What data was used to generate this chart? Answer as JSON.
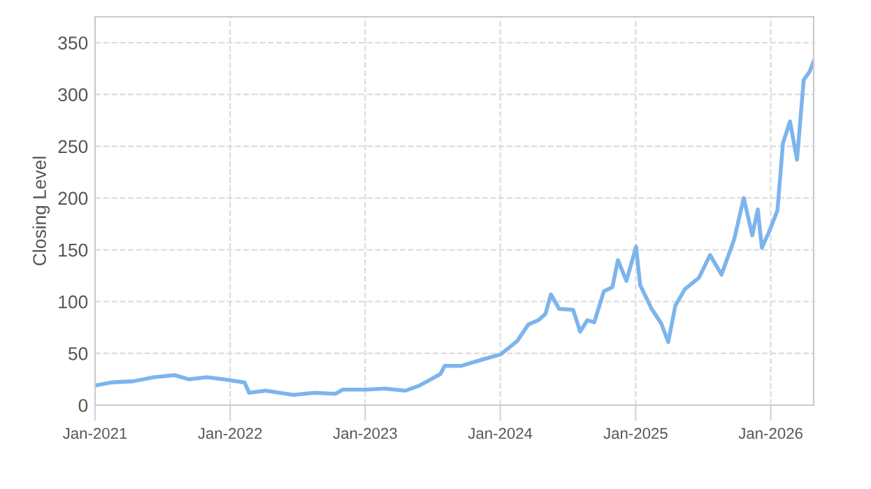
{
  "chart_data": {
    "type": "line",
    "ylabel": "Closing Level",
    "x": [
      "2021-01-01",
      "2021-02-15",
      "2021-04-13",
      "2021-06-09",
      "2021-08-04",
      "2021-09-11",
      "2021-10-30",
      "2021-12-15",
      "2022-02-09",
      "2022-02-21",
      "2022-04-07",
      "2022-06-21",
      "2022-08-17",
      "2022-10-13",
      "2022-11-01",
      "2023-01-04",
      "2023-02-22",
      "2023-04-20",
      "2023-05-28",
      "2023-07-23",
      "2023-08-04",
      "2023-09-18",
      "2023-11-13",
      "2024-01-02",
      "2024-02-16",
      "2024-03-17",
      "2024-04-13",
      "2024-05-02",
      "2024-05-17",
      "2024-06-08",
      "2024-07-16",
      "2024-08-04",
      "2024-08-23",
      "2024-09-11",
      "2024-10-07",
      "2024-10-30",
      "2024-11-14",
      "2024-12-07",
      "2025-01-02",
      "2025-01-13",
      "2025-02-13",
      "2025-03-11",
      "2025-03-30",
      "2025-04-18",
      "2025-05-14",
      "2025-06-21",
      "2025-07-21",
      "2025-08-21",
      "2025-09-24",
      "2025-10-20",
      "2025-11-12",
      "2025-11-27",
      "2025-12-08",
      "2025-12-27",
      "2026-01-19",
      "2026-02-03",
      "2026-02-22",
      "2026-03-13",
      "2026-03-31",
      "2026-04-16",
      "2026-04-27"
    ],
    "series": [
      {
        "color": "#7cb5ec",
        "values": [
          19,
          22,
          23,
          27,
          29,
          25,
          27,
          25,
          22,
          12,
          14,
          10,
          12,
          11,
          15,
          15,
          16,
          14,
          19,
          30,
          38,
          38,
          44,
          49,
          62,
          78,
          82,
          88,
          107,
          93,
          92,
          71,
          82,
          80,
          110,
          114,
          140,
          120,
          153,
          116,
          93,
          79,
          61,
          96,
          112,
          123,
          145,
          126,
          160,
          200,
          164,
          189,
          152,
          167,
          188,
          253,
          274,
          237,
          314,
          322,
          332
        ]
      }
    ],
    "xlim": [
      "2021-01-01",
      "2026-04-27"
    ],
    "xticks": [
      {
        "value": "2021-01-01",
        "label": "Jan-2021"
      },
      {
        "value": "2022-01-01",
        "label": "Jan-2022"
      },
      {
        "value": "2023-01-01",
        "label": "Jan-2023"
      },
      {
        "value": "2024-01-01",
        "label": "Jan-2024"
      },
      {
        "value": "2025-01-01",
        "label": "Jan-2025"
      },
      {
        "value": "2026-01-01",
        "label": "Jan-2026"
      }
    ],
    "ylim": [
      0,
      375
    ],
    "yticks": [
      0,
      50,
      100,
      150,
      200,
      250,
      300,
      350
    ],
    "grid": true,
    "legend": false,
    "marker": "none",
    "line_style": "solid"
  }
}
